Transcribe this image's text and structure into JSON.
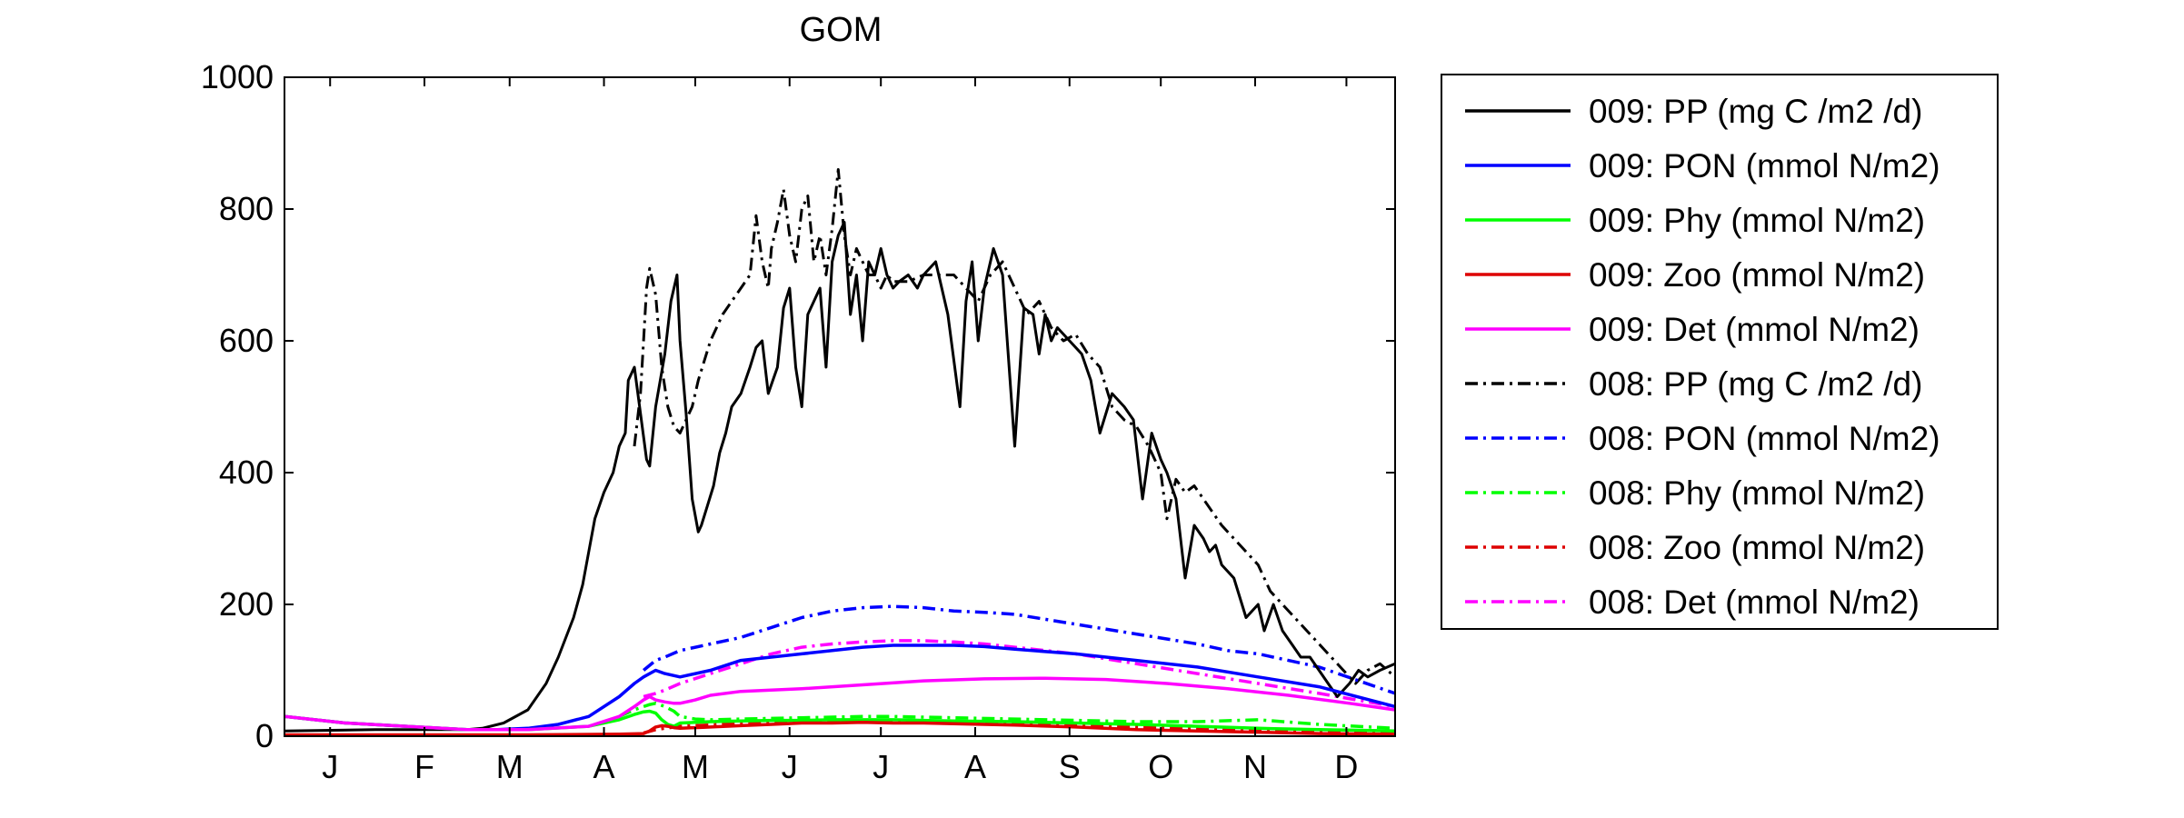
{
  "chart_data": {
    "type": "line",
    "title": "GOM",
    "xlabel": "",
    "ylabel": "",
    "xlim": [
      0,
      365
    ],
    "ylim": [
      0,
      1000
    ],
    "grid": false,
    "legend_position": "outside-right",
    "x_ticks": [
      {
        "label": "J",
        "value": 15
      },
      {
        "label": "F",
        "value": 46
      },
      {
        "label": "M",
        "value": 74
      },
      {
        "label": "A",
        "value": 105
      },
      {
        "label": "M",
        "value": 135
      },
      {
        "label": "J",
        "value": 166
      },
      {
        "label": "J",
        "value": 196
      },
      {
        "label": "A",
        "value": 227
      },
      {
        "label": "S",
        "value": 258
      },
      {
        "label": "O",
        "value": 288
      },
      {
        "label": "N",
        "value": 319
      },
      {
        "label": "D",
        "value": 349
      }
    ],
    "y_ticks": [
      0,
      200,
      400,
      600,
      800,
      1000
    ],
    "series": [
      {
        "name": "009: PP (mg C /m2 /d)",
        "color": "#000000",
        "style": "solid",
        "x": [
          0,
          30,
          50,
          60,
          65,
          72,
          80,
          86,
          90,
          95,
          98,
          100,
          102,
          105,
          108,
          110,
          112,
          113,
          115,
          117,
          119,
          120,
          122,
          125,
          127,
          129,
          130,
          132,
          134,
          136,
          137,
          139,
          141,
          143,
          145,
          147,
          150,
          153,
          155,
          157,
          159,
          162,
          164,
          166,
          168,
          170,
          172,
          174,
          176,
          178,
          180,
          182,
          184,
          186,
          188,
          190,
          192,
          194,
          196,
          198,
          200,
          202,
          205,
          208,
          210,
          214,
          218,
          222,
          224,
          226,
          228,
          230,
          233,
          236,
          240,
          243,
          246,
          248,
          250,
          252,
          254,
          258,
          262,
          265,
          268,
          272,
          276,
          279,
          282,
          285,
          288,
          290,
          293,
          296,
          299,
          302,
          304,
          306,
          308,
          312,
          316,
          320,
          322,
          325,
          328,
          331,
          334,
          337,
          340,
          343,
          346,
          350,
          353,
          356,
          360,
          365
        ],
        "y": [
          8,
          10,
          10,
          10,
          12,
          20,
          40,
          80,
          120,
          180,
          230,
          280,
          330,
          370,
          400,
          440,
          460,
          540,
          560,
          490,
          420,
          410,
          500,
          580,
          660,
          700,
          600,
          490,
          360,
          310,
          320,
          350,
          380,
          430,
          460,
          500,
          520,
          560,
          590,
          600,
          520,
          560,
          650,
          680,
          560,
          500,
          640,
          660,
          680,
          560,
          720,
          760,
          780,
          640,
          700,
          600,
          720,
          700,
          740,
          700,
          680,
          690,
          700,
          680,
          700,
          720,
          640,
          500,
          660,
          720,
          600,
          680,
          740,
          700,
          440,
          650,
          640,
          580,
          640,
          600,
          620,
          600,
          580,
          540,
          460,
          520,
          500,
          480,
          360,
          460,
          420,
          400,
          360,
          240,
          320,
          300,
          280,
          290,
          260,
          240,
          180,
          200,
          160,
          200,
          160,
          140,
          120,
          120,
          100,
          80,
          60,
          80,
          100,
          90,
          100,
          110
        ]
      },
      {
        "name": "009: PON (mmol N/m2)",
        "color": "#0000ff",
        "style": "solid",
        "x": [
          0,
          20,
          40,
          60,
          70,
          80,
          90,
          100,
          110,
          115,
          118,
          122,
          125,
          130,
          140,
          150,
          160,
          170,
          180,
          190,
          200,
          210,
          220,
          230,
          240,
          260,
          280,
          300,
          320,
          340,
          365
        ],
        "y": [
          30,
          20,
          15,
          10,
          10,
          12,
          18,
          30,
          60,
          80,
          90,
          100,
          95,
          90,
          100,
          115,
          120,
          125,
          130,
          135,
          138,
          138,
          138,
          136,
          132,
          125,
          115,
          105,
          90,
          75,
          45
        ]
      },
      {
        "name": "009: Phy (mmol N/m2)",
        "color": "#00ff00",
        "style": "solid",
        "x": [
          0,
          20,
          40,
          60,
          80,
          100,
          110,
          115,
          118,
          120,
          122,
          124,
          126,
          128,
          130,
          140,
          150,
          160,
          170,
          180,
          190,
          200,
          210,
          220,
          240,
          260,
          280,
          300,
          320,
          340,
          365
        ],
        "y": [
          30,
          20,
          15,
          10,
          10,
          15,
          25,
          33,
          37,
          38,
          35,
          25,
          18,
          15,
          20,
          22,
          23,
          24,
          24,
          25,
          25,
          25,
          24,
          23,
          22,
          20,
          18,
          15,
          12,
          10,
          8
        ]
      },
      {
        "name": "009: Zoo (mmol N/m2)",
        "color": "#dd0000",
        "style": "solid",
        "x": [
          0,
          40,
          80,
          110,
          118,
          120,
          122,
          124,
          126,
          128,
          130,
          140,
          150,
          160,
          170,
          180,
          190,
          200,
          210,
          220,
          240,
          260,
          280,
          300,
          320,
          340,
          365
        ],
        "y": [
          2,
          2,
          2,
          3,
          4,
          8,
          14,
          16,
          15,
          13,
          12,
          14,
          16,
          18,
          20,
          20,
          21,
          20,
          20,
          19,
          17,
          14,
          10,
          8,
          6,
          4,
          3
        ]
      },
      {
        "name": "009: Det (mmol N/m2)",
        "color": "#ff00ff",
        "style": "solid",
        "x": [
          0,
          20,
          40,
          60,
          80,
          100,
          110,
          115,
          118,
          120,
          122,
          125,
          128,
          130,
          135,
          140,
          150,
          170,
          190,
          210,
          230,
          250,
          270,
          290,
          310,
          330,
          350,
          365
        ],
        "y": [
          30,
          20,
          15,
          10,
          10,
          15,
          30,
          45,
          55,
          60,
          55,
          52,
          50,
          50,
          55,
          62,
          68,
          72,
          78,
          84,
          87,
          88,
          86,
          80,
          72,
          62,
          50,
          40
        ]
      },
      {
        "name": "008: PP (mg C /m2 /d)",
        "color": "#000000",
        "style": "dashdot",
        "x": [
          115,
          117,
          118,
          119,
          120,
          122,
          124,
          126,
          128,
          130,
          132,
          134,
          136,
          140,
          144,
          147,
          150,
          153,
          155,
          157,
          159,
          160,
          162,
          164,
          166,
          168,
          170,
          172,
          174,
          176,
          178,
          180,
          182,
          184,
          186,
          188,
          190,
          192,
          194,
          196,
          198,
          200,
          205,
          210,
          215,
          220,
          224,
          228,
          232,
          236,
          240,
          244,
          248,
          252,
          256,
          260,
          264,
          268,
          272,
          276,
          280,
          284,
          288,
          290,
          293,
          296,
          299,
          302,
          305,
          308,
          312,
          316,
          320,
          324,
          328,
          332,
          336,
          340,
          344,
          348,
          352,
          356,
          360,
          365
        ],
        "y": [
          440,
          520,
          600,
          680,
          710,
          670,
          560,
          500,
          470,
          460,
          480,
          500,
          540,
          600,
          640,
          660,
          680,
          700,
          790,
          720,
          680,
          740,
          780,
          830,
          760,
          720,
          800,
          820,
          720,
          760,
          700,
          770,
          860,
          760,
          700,
          740,
          720,
          700,
          700,
          680,
          700,
          690,
          690,
          700,
          700,
          700,
          680,
          660,
          700,
          720,
          680,
          640,
          660,
          620,
          600,
          610,
          580,
          560,
          500,
          480,
          470,
          440,
          400,
          330,
          390,
          370,
          380,
          360,
          340,
          320,
          300,
          280,
          260,
          220,
          200,
          180,
          160,
          140,
          120,
          100,
          80,
          100,
          110,
          90
        ]
      },
      {
        "name": "008: PON (mmol N/m2)",
        "color": "#0000ff",
        "style": "dashdot",
        "x": [
          118,
          122,
          125,
          130,
          140,
          150,
          160,
          170,
          180,
          190,
          200,
          210,
          220,
          230,
          240,
          260,
          280,
          300,
          310,
          320,
          340,
          365
        ],
        "y": [
          100,
          115,
          120,
          130,
          140,
          150,
          165,
          180,
          190,
          195,
          197,
          195,
          190,
          188,
          185,
          170,
          155,
          140,
          130,
          125,
          105,
          65
        ]
      },
      {
        "name": "008: Phy (mmol N/m2)",
        "color": "#00ff00",
        "style": "dashdot",
        "x": [
          110,
          115,
          118,
          120,
          122,
          125,
          128,
          130,
          135,
          140,
          150,
          160,
          170,
          180,
          190,
          200,
          210,
          220,
          240,
          260,
          280,
          300,
          320,
          340,
          365
        ],
        "y": [
          30,
          40,
          45,
          48,
          50,
          45,
          38,
          30,
          26,
          25,
          26,
          27,
          28,
          29,
          30,
          30,
          29,
          28,
          26,
          24,
          22,
          22,
          25,
          18,
          12
        ]
      },
      {
        "name": "008: Zoo (mmol N/m2)",
        "color": "#dd0000",
        "style": "dashdot",
        "x": [
          118,
          122,
          125,
          130,
          140,
          150,
          160,
          170,
          180,
          190,
          200,
          210,
          220,
          230,
          240,
          250,
          260,
          270,
          280,
          290,
          300,
          310,
          320,
          340,
          365
        ],
        "y": [
          5,
          10,
          12,
          15,
          17,
          20,
          22,
          23,
          24,
          24,
          24,
          23,
          22,
          21,
          20,
          19,
          18,
          16,
          14,
          13,
          12,
          11,
          10,
          6,
          4
        ]
      },
      {
        "name": "008: Det (mmol N/m2)",
        "color": "#ff00ff",
        "style": "dashdot",
        "x": [
          118,
          122,
          125,
          130,
          140,
          150,
          160,
          170,
          180,
          190,
          200,
          210,
          220,
          230,
          240,
          260,
          280,
          300,
          320,
          340,
          365
        ],
        "y": [
          60,
          65,
          70,
          80,
          95,
          110,
          125,
          135,
          140,
          143,
          145,
          145,
          143,
          140,
          135,
          125,
          110,
          95,
          80,
          65,
          45
        ]
      }
    ]
  }
}
